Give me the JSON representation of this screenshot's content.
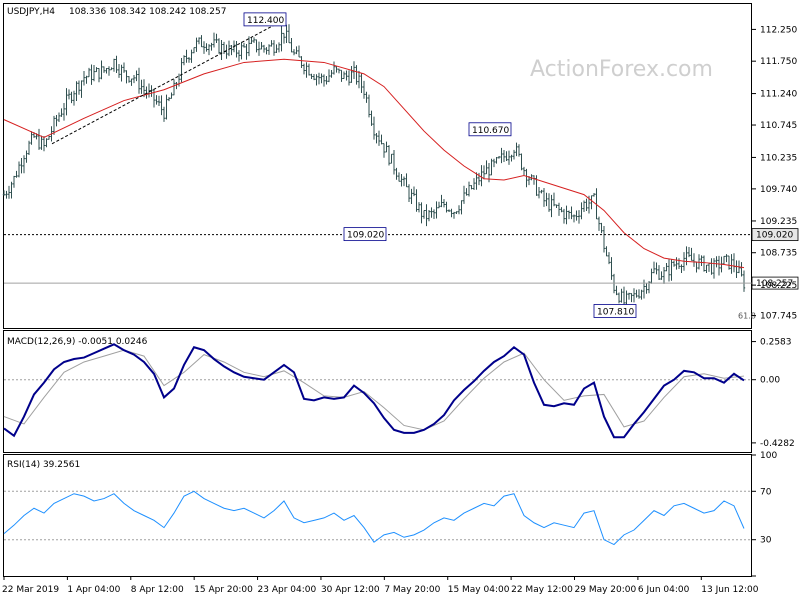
{
  "header": {
    "symbol": "USDJPY,H4",
    "ohlc": "108.336 108.342 108.242 108.257",
    "macd_label": "MACD(12,26,9) -0.0051 0.0246",
    "rsi_label": "RSI(14) 39.2561"
  },
  "watermark": "ActionForex.com",
  "colors": {
    "price_bars": "#2f4f4f",
    "moving_average": "#d62020",
    "macd_line": "#00008b",
    "signal_line": "#a0a0a0",
    "rsi_line": "#1e90ff",
    "grid": "#a0a0a0",
    "watermark": "#cfcfcf"
  },
  "chart_data": [
    {
      "type": "bar",
      "subtype": "ohlc",
      "name": "",
      "ylim": [
        107.55,
        112.65
      ],
      "y_ticks": [
        "112.250",
        "111.750",
        "111.240",
        "110.745",
        "110.235",
        "109.740",
        "109.235",
        "108.735",
        "108.225",
        "107.745"
      ],
      "x_ticks": [
        "22 Mar 2019",
        "1 Apr 04:00",
        "8 Apr 12:00",
        "15 Apr 20:00",
        "23 Apr 04:00",
        "30 Apr 12:00",
        "7 May 20:00",
        "15 May 04:00",
        "22 May 12:00",
        "29 May 20:00",
        "6 Jun 04:00",
        "13 Jun 12:00"
      ],
      "close_path": [
        [
          0,
          109.65
        ],
        [
          10,
          109.9
        ],
        [
          20,
          110.3
        ],
        [
          30,
          110.55
        ],
        [
          40,
          110.4
        ],
        [
          50,
          110.75
        ],
        [
          60,
          111.05
        ],
        [
          70,
          111.3
        ],
        [
          80,
          111.5
        ],
        [
          90,
          111.55
        ],
        [
          100,
          111.6
        ],
        [
          110,
          111.75
        ],
        [
          120,
          111.55
        ],
        [
          130,
          111.5
        ],
        [
          140,
          111.3
        ],
        [
          150,
          111.15
        ],
        [
          160,
          110.95
        ],
        [
          170,
          111.3
        ],
        [
          180,
          111.75
        ],
        [
          190,
          112.0
        ],
        [
          200,
          112.05
        ],
        [
          210,
          112.0
        ],
        [
          220,
          111.95
        ],
        [
          230,
          111.9
        ],
        [
          240,
          111.95
        ],
        [
          250,
          112.0
        ],
        [
          260,
          111.95
        ],
        [
          270,
          112.0
        ],
        [
          280,
          112.2
        ],
        [
          290,
          111.85
        ],
        [
          300,
          111.7
        ],
        [
          310,
          111.55
        ],
        [
          320,
          111.45
        ],
        [
          330,
          111.6
        ],
        [
          340,
          111.5
        ],
        [
          350,
          111.55
        ],
        [
          360,
          111.3
        ],
        [
          370,
          110.7
        ],
        [
          380,
          110.4
        ],
        [
          390,
          110.1
        ],
        [
          400,
          109.8
        ],
        [
          410,
          109.55
        ],
        [
          420,
          109.3
        ],
        [
          430,
          109.35
        ],
        [
          440,
          109.5
        ],
        [
          450,
          109.4
        ],
        [
          460,
          109.6
        ],
        [
          470,
          109.8
        ],
        [
          480,
          110.0
        ],
        [
          490,
          110.1
        ],
        [
          500,
          110.25
        ],
        [
          510,
          110.4
        ],
        [
          520,
          110.05
        ],
        [
          530,
          109.8
        ],
        [
          540,
          109.55
        ],
        [
          550,
          109.45
        ],
        [
          560,
          109.35
        ],
        [
          570,
          109.3
        ],
        [
          580,
          109.5
        ],
        [
          590,
          109.55
        ],
        [
          600,
          108.85
        ],
        [
          610,
          108.2
        ],
        [
          620,
          107.95
        ],
        [
          630,
          108.05
        ],
        [
          640,
          108.2
        ],
        [
          650,
          108.45
        ],
        [
          660,
          108.4
        ],
        [
          670,
          108.55
        ],
        [
          680,
          108.65
        ],
        [
          690,
          108.6
        ],
        [
          700,
          108.55
        ],
        [
          710,
          108.5
        ],
        [
          720,
          108.6
        ],
        [
          730,
          108.55
        ],
        [
          740,
          108.26
        ]
      ],
      "moving_average": [
        [
          0,
          110.83
        ],
        [
          40,
          110.55
        ],
        [
          80,
          110.85
        ],
        [
          120,
          111.13
        ],
        [
          160,
          111.3
        ],
        [
          200,
          111.55
        ],
        [
          240,
          111.73
        ],
        [
          280,
          111.78
        ],
        [
          320,
          111.73
        ],
        [
          360,
          111.55
        ],
        [
          380,
          111.35
        ],
        [
          400,
          111.0
        ],
        [
          420,
          110.65
        ],
        [
          440,
          110.35
        ],
        [
          460,
          110.1
        ],
        [
          480,
          109.9
        ],
        [
          500,
          109.88
        ],
        [
          520,
          109.95
        ],
        [
          540,
          109.85
        ],
        [
          560,
          109.75
        ],
        [
          580,
          109.65
        ],
        [
          600,
          109.4
        ],
        [
          620,
          109.05
        ],
        [
          640,
          108.8
        ],
        [
          660,
          108.65
        ],
        [
          680,
          108.6
        ],
        [
          700,
          108.58
        ],
        [
          720,
          108.55
        ],
        [
          740,
          108.5
        ]
      ],
      "annotations": [
        {
          "label": "112.400",
          "x": 280,
          "y": 112.4
        },
        {
          "label": "110.670",
          "x": 505,
          "y": 110.67
        },
        {
          "label": "109.020",
          "x": 380,
          "y": 109.02
        },
        {
          "label": "107.810",
          "x": 630,
          "y": 107.81
        },
        {
          "label": "61.8",
          "x": 740,
          "y": 107.75
        }
      ],
      "trendline": [
        [
          48,
          110.45
        ],
        [
          280,
          112.4
        ]
      ],
      "horizontal_levels": [
        {
          "label": "109.020",
          "value": 109.02,
          "style": "dashed"
        },
        {
          "label": "108.257",
          "value": 108.257,
          "style": "solid"
        }
      ]
    },
    {
      "type": "line",
      "name": "MACD(12,26,9)",
      "ylim": [
        -0.49,
        0.33
      ],
      "y_ticks": [
        "0.2583",
        "0.00",
        "-0.4282"
      ],
      "zero_line": 0,
      "macd": [
        [
          0,
          -0.33
        ],
        [
          10,
          -0.38
        ],
        [
          20,
          -0.25
        ],
        [
          30,
          -0.1
        ],
        [
          40,
          -0.02
        ],
        [
          50,
          0.07
        ],
        [
          60,
          0.12
        ],
        [
          70,
          0.14
        ],
        [
          80,
          0.15
        ],
        [
          90,
          0.18
        ],
        [
          100,
          0.21
        ],
        [
          110,
          0.24
        ],
        [
          120,
          0.2
        ],
        [
          130,
          0.17
        ],
        [
          140,
          0.12
        ],
        [
          150,
          0.04
        ],
        [
          160,
          -0.12
        ],
        [
          170,
          -0.06
        ],
        [
          180,
          0.1
        ],
        [
          190,
          0.22
        ],
        [
          200,
          0.2
        ],
        [
          210,
          0.14
        ],
        [
          220,
          0.09
        ],
        [
          230,
          0.05
        ],
        [
          240,
          0.02
        ],
        [
          250,
          0.01
        ],
        [
          260,
          0.0
        ],
        [
          270,
          0.05
        ],
        [
          280,
          0.1
        ],
        [
          290,
          0.05
        ],
        [
          300,
          -0.13
        ],
        [
          310,
          -0.14
        ],
        [
          320,
          -0.12
        ],
        [
          330,
          -0.13
        ],
        [
          340,
          -0.12
        ],
        [
          350,
          -0.04
        ],
        [
          360,
          -0.09
        ],
        [
          370,
          -0.16
        ],
        [
          380,
          -0.26
        ],
        [
          390,
          -0.34
        ],
        [
          400,
          -0.36
        ],
        [
          410,
          -0.36
        ],
        [
          420,
          -0.34
        ],
        [
          430,
          -0.3
        ],
        [
          440,
          -0.24
        ],
        [
          450,
          -0.14
        ],
        [
          460,
          -0.07
        ],
        [
          470,
          -0.01
        ],
        [
          480,
          0.06
        ],
        [
          490,
          0.12
        ],
        [
          500,
          0.16
        ],
        [
          510,
          0.22
        ],
        [
          520,
          0.17
        ],
        [
          530,
          -0.02
        ],
        [
          540,
          -0.17
        ],
        [
          550,
          -0.18
        ],
        [
          560,
          -0.16
        ],
        [
          570,
          -0.17
        ],
        [
          580,
          -0.06
        ],
        [
          590,
          -0.02
        ],
        [
          600,
          -0.25
        ],
        [
          610,
          -0.39
        ],
        [
          620,
          -0.39
        ],
        [
          630,
          -0.3
        ],
        [
          640,
          -0.22
        ],
        [
          650,
          -0.13
        ],
        [
          660,
          -0.04
        ],
        [
          670,
          0.0
        ],
        [
          680,
          0.06
        ],
        [
          690,
          0.05
        ],
        [
          700,
          0.01
        ],
        [
          710,
          0.01
        ],
        [
          720,
          -0.02
        ],
        [
          730,
          0.04
        ],
        [
          740,
          -0.0051
        ]
      ],
      "signal": [
        [
          0,
          -0.25
        ],
        [
          20,
          -0.3
        ],
        [
          40,
          -0.12
        ],
        [
          60,
          0.05
        ],
        [
          80,
          0.12
        ],
        [
          100,
          0.16
        ],
        [
          120,
          0.2
        ],
        [
          140,
          0.16
        ],
        [
          160,
          -0.04
        ],
        [
          180,
          0.05
        ],
        [
          200,
          0.17
        ],
        [
          220,
          0.12
        ],
        [
          240,
          0.05
        ],
        [
          260,
          0.02
        ],
        [
          280,
          0.06
        ],
        [
          300,
          -0.02
        ],
        [
          320,
          -0.11
        ],
        [
          340,
          -0.12
        ],
        [
          360,
          -0.08
        ],
        [
          380,
          -0.19
        ],
        [
          400,
          -0.31
        ],
        [
          420,
          -0.34
        ],
        [
          440,
          -0.28
        ],
        [
          460,
          -0.13
        ],
        [
          480,
          0.01
        ],
        [
          500,
          0.12
        ],
        [
          520,
          0.18
        ],
        [
          540,
          0.0
        ],
        [
          560,
          -0.14
        ],
        [
          580,
          -0.11
        ],
        [
          600,
          -0.1
        ],
        [
          620,
          -0.32
        ],
        [
          640,
          -0.28
        ],
        [
          660,
          -0.12
        ],
        [
          680,
          0.02
        ],
        [
          700,
          0.04
        ],
        [
          720,
          0.01
        ],
        [
          740,
          0.0246
        ]
      ]
    },
    {
      "type": "line",
      "name": "RSI(14)",
      "ylim": [
        0,
        100
      ],
      "y_ticks": [
        "100",
        "70",
        "30",
        "0"
      ],
      "levels": [
        70,
        30
      ],
      "rsi": [
        [
          0,
          35
        ],
        [
          10,
          42
        ],
        [
          20,
          50
        ],
        [
          30,
          56
        ],
        [
          40,
          52
        ],
        [
          50,
          60
        ],
        [
          60,
          64
        ],
        [
          70,
          68
        ],
        [
          80,
          66
        ],
        [
          90,
          62
        ],
        [
          100,
          64
        ],
        [
          110,
          68
        ],
        [
          120,
          60
        ],
        [
          130,
          54
        ],
        [
          140,
          50
        ],
        [
          150,
          46
        ],
        [
          160,
          40
        ],
        [
          170,
          52
        ],
        [
          180,
          66
        ],
        [
          190,
          70
        ],
        [
          200,
          64
        ],
        [
          210,
          60
        ],
        [
          220,
          56
        ],
        [
          230,
          54
        ],
        [
          240,
          56
        ],
        [
          250,
          52
        ],
        [
          260,
          48
        ],
        [
          270,
          54
        ],
        [
          280,
          62
        ],
        [
          290,
          48
        ],
        [
          300,
          44
        ],
        [
          310,
          46
        ],
        [
          320,
          48
        ],
        [
          330,
          52
        ],
        [
          340,
          46
        ],
        [
          350,
          50
        ],
        [
          360,
          40
        ],
        [
          370,
          28
        ],
        [
          380,
          34
        ],
        [
          390,
          36
        ],
        [
          400,
          32
        ],
        [
          410,
          34
        ],
        [
          420,
          38
        ],
        [
          430,
          44
        ],
        [
          440,
          48
        ],
        [
          450,
          46
        ],
        [
          460,
          52
        ],
        [
          470,
          56
        ],
        [
          480,
          60
        ],
        [
          490,
          58
        ],
        [
          500,
          66
        ],
        [
          510,
          68
        ],
        [
          520,
          50
        ],
        [
          530,
          44
        ],
        [
          540,
          40
        ],
        [
          550,
          44
        ],
        [
          560,
          42
        ],
        [
          570,
          40
        ],
        [
          580,
          52
        ],
        [
          590,
          54
        ],
        [
          600,
          30
        ],
        [
          610,
          26
        ],
        [
          620,
          34
        ],
        [
          630,
          38
        ],
        [
          640,
          46
        ],
        [
          650,
          54
        ],
        [
          660,
          50
        ],
        [
          670,
          58
        ],
        [
          680,
          60
        ],
        [
          690,
          56
        ],
        [
          700,
          52
        ],
        [
          710,
          54
        ],
        [
          720,
          62
        ],
        [
          730,
          58
        ],
        [
          740,
          39.26
        ]
      ]
    }
  ]
}
